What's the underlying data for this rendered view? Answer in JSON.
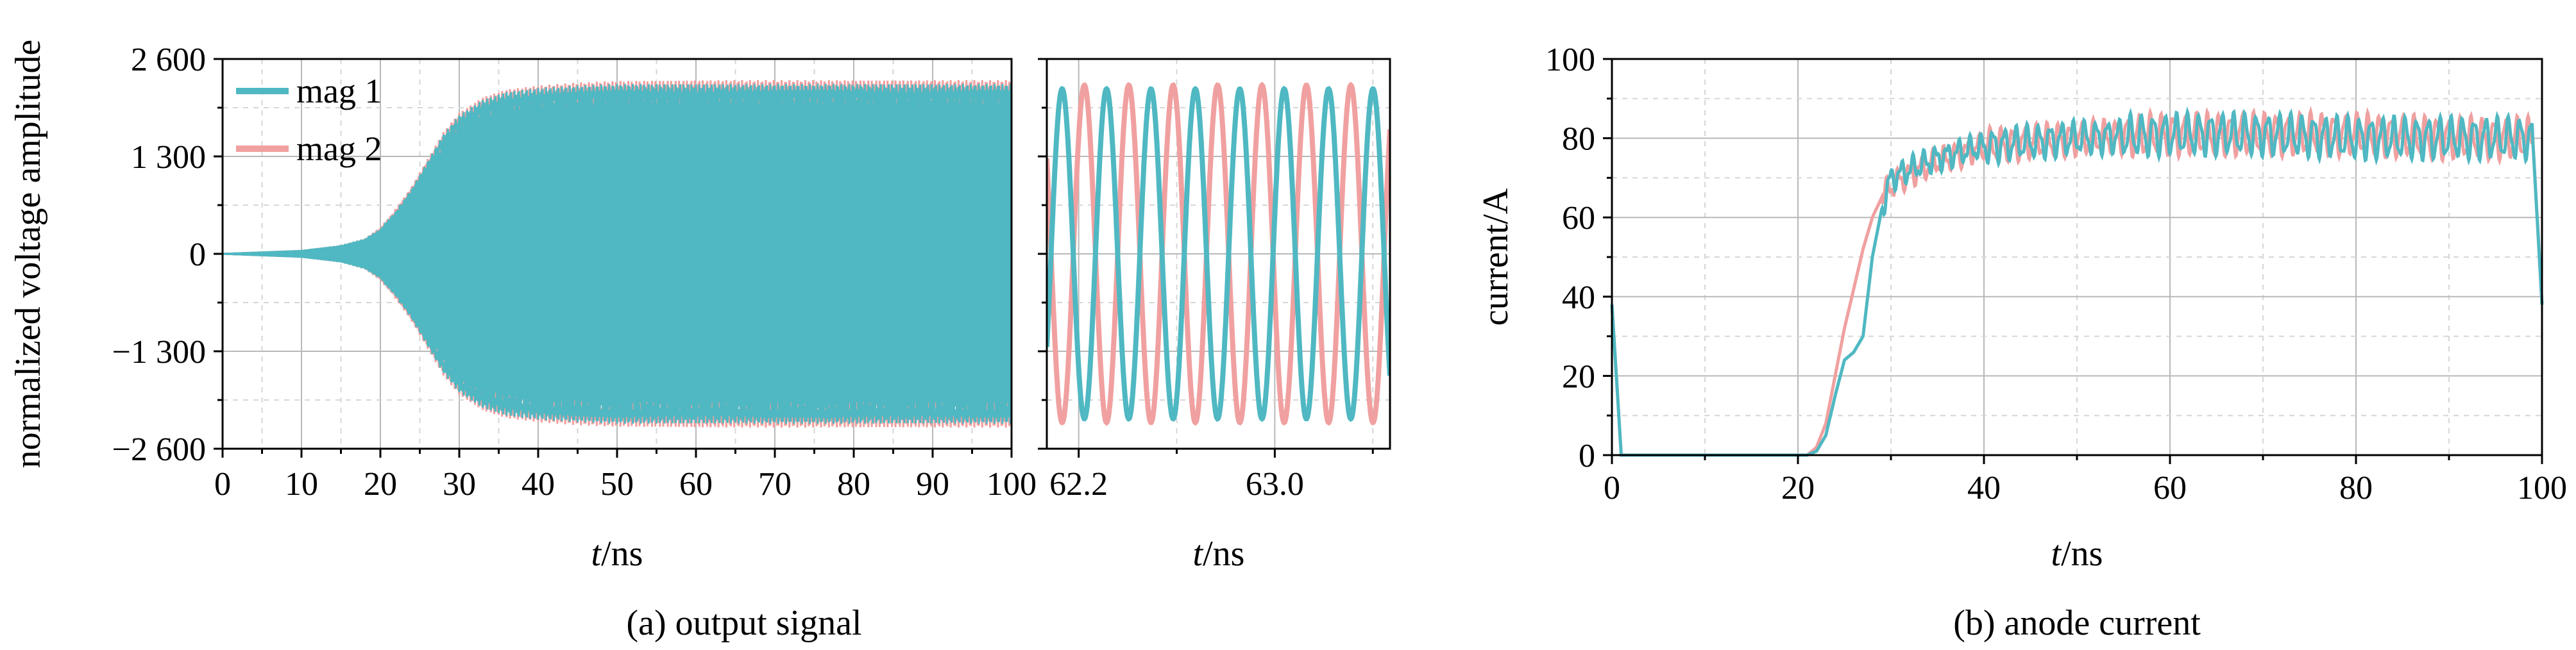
{
  "colors": {
    "mag1": "#4fb8c2",
    "mag2": "#f0a0a0"
  },
  "chart_data": [
    {
      "id": "a-main",
      "type": "line",
      "ylabel": "normalized voltage amplitude",
      "xlabel_italic": "t",
      "xlabel_unit": "/ns",
      "xlim": [
        0,
        100
      ],
      "ylim": [
        -2600,
        2600
      ],
      "x_ticks": [
        0,
        10,
        20,
        30,
        40,
        50,
        60,
        70,
        80,
        90,
        100
      ],
      "x_tick_labels": [
        "0",
        "10",
        "20",
        "30",
        "40",
        "50",
        "60",
        "70",
        "80",
        "90",
        "100"
      ],
      "y_ticks": [
        -2600,
        -1300,
        0,
        1300,
        2600
      ],
      "y_tick_labels": [
        "−2 600",
        "−1 300",
        "0",
        "1 300",
        "2 600"
      ],
      "grid": true,
      "legend_position": "top-left",
      "series": [
        {
          "name": "mag 1",
          "color_key": "mag1",
          "envelope": {
            "x": [
              0,
              10,
              15,
              18,
              20,
              22,
              24,
              26,
              28,
              30,
              33,
              36,
              40,
              45,
              50,
              60,
              70,
              80,
              90,
              100
            ],
            "amp": [
              0,
              40,
              100,
              180,
              300,
              550,
              850,
              1200,
              1550,
              1800,
              2000,
              2100,
              2150,
              2180,
              2200,
              2200,
              2200,
              2200,
              2200,
              2200
            ]
          }
        },
        {
          "name": "mag 2",
          "color_key": "mag2",
          "envelope": {
            "x": [
              0,
              10,
              15,
              18,
              20,
              22,
              24,
              26,
              28,
              30,
              33,
              36,
              40,
              45,
              50,
              60,
              70,
              80,
              90,
              100
            ],
            "amp": [
              0,
              40,
              100,
              180,
              320,
              580,
              880,
              1230,
              1580,
              1830,
              2030,
              2130,
              2180,
              2220,
              2240,
              2250,
              2250,
              2250,
              2250,
              2250
            ]
          }
        }
      ]
    },
    {
      "id": "a-zoom",
      "type": "line",
      "xlabel_italic": "t",
      "xlabel_unit": "/ns",
      "xlim": [
        62.07,
        63.47
      ],
      "ylim": [
        -2600,
        2600
      ],
      "x_ticks": [
        62.2,
        63.0
      ],
      "x_tick_labels": [
        "62.2",
        "63.0"
      ],
      "x_minor_ticks": [
        62.6,
        63.4
      ],
      "grid": true,
      "series": [
        {
          "name": "mag 1",
          "color_key": "mag1",
          "frequency_ghz": 5.52,
          "amplitude": 2200,
          "phase_at_xmin": -0.6
        },
        {
          "name": "mag 2",
          "color_key": "mag2",
          "frequency_ghz": 5.52,
          "amplitude": 2250,
          "phase_at_xmin": 2.54
        }
      ]
    },
    {
      "id": "b",
      "type": "line",
      "ylabel": "current/A",
      "xlabel_italic": "t",
      "xlabel_unit": "/ns",
      "xlim": [
        0,
        100
      ],
      "ylim": [
        0,
        100
      ],
      "x_ticks": [
        0,
        20,
        40,
        60,
        80,
        100
      ],
      "x_tick_labels": [
        "0",
        "20",
        "40",
        "60",
        "80",
        "100"
      ],
      "y_ticks": [
        0,
        20,
        40,
        60,
        80,
        100
      ],
      "y_tick_labels": [
        "0",
        "20",
        "40",
        "60",
        "80",
        "100"
      ],
      "grid": true,
      "series": [
        {
          "name": "mag 1",
          "color_key": "mag1",
          "x": [
            0,
            1,
            1.2,
            21,
            22,
            23,
            24,
            25,
            26,
            27,
            28,
            29,
            30,
            32,
            35,
            40,
            50,
            60,
            70,
            80,
            90,
            99,
            100
          ],
          "y": [
            38,
            0,
            0,
            0,
            1,
            5,
            15,
            24,
            26,
            30,
            50,
            62,
            70,
            72,
            75,
            78,
            80,
            81,
            81,
            80,
            80,
            80,
            38
          ]
        },
        {
          "name": "mag 2",
          "color_key": "mag2",
          "x": [
            0,
            1,
            1.2,
            21,
            22,
            23,
            24,
            25,
            26,
            27,
            28,
            29,
            30,
            32,
            35,
            40,
            50,
            60,
            70,
            80,
            90,
            99,
            100
          ],
          "y": [
            38,
            0,
            0,
            0,
            2,
            8,
            20,
            32,
            42,
            52,
            60,
            65,
            68,
            71,
            74,
            78,
            80,
            81,
            81,
            81,
            80,
            80,
            38
          ]
        }
      ]
    }
  ],
  "captions": {
    "a": "(a) output signal",
    "b": "(b) anode current"
  }
}
